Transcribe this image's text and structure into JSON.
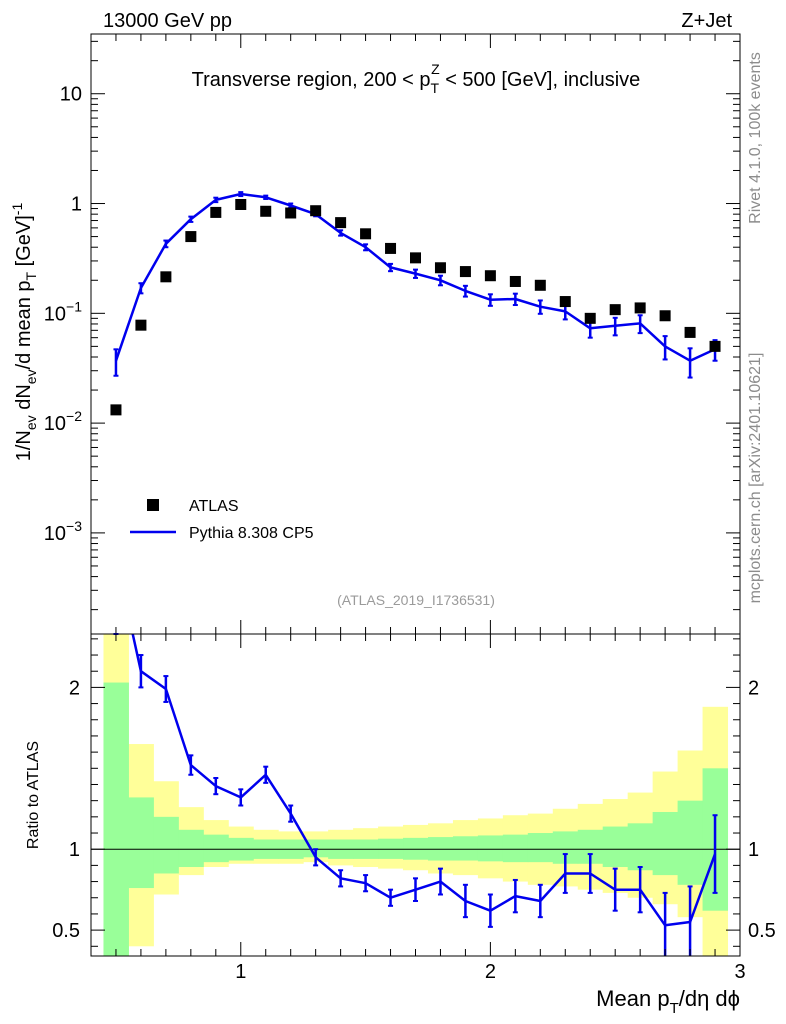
{
  "header": {
    "left": "13000 GeV pp",
    "right": "Z+Jet"
  },
  "side_labels": {
    "rivet": "Rivet 4.1.0,  100k events",
    "mcplots": "mcplots.cern.ch [arXiv:2401.10621]"
  },
  "chart_data": [
    {
      "type": "scatter",
      "panel": "main",
      "title_parts": {
        "pre": "Transverse region, 200 < p",
        "sub": "T",
        "sup": "Z",
        "post": " < 500 [GeV], inclusive"
      },
      "ylabel_parts": [
        "1/N",
        "ev",
        " dN",
        "ev",
        "/d mean p",
        "T",
        " [GeV]",
        "-1"
      ],
      "yscale": "log",
      "ylim": [
        0.00012,
        35
      ],
      "xlim": [
        0.4,
        3.0
      ],
      "y_tick_labels": [
        {
          "value": 10,
          "label": "10"
        },
        {
          "value": 1,
          "label": "1"
        },
        {
          "value": 0.1,
          "base": "10",
          "exp": "−1"
        },
        {
          "value": 0.01,
          "base": "10",
          "exp": "−2"
        },
        {
          "value": 0.001,
          "base": "10",
          "exp": "−3"
        }
      ],
      "legend": [
        "ATLAS",
        "Pythia 8.308 CP5"
      ],
      "legend_position": "bottom-left",
      "watermark": "(ATLAS_2019_I1736531)",
      "x": [
        0.5,
        0.6,
        0.7,
        0.8,
        0.9,
        1.0,
        1.1,
        1.2,
        1.3,
        1.4,
        1.5,
        1.6,
        1.7,
        1.8,
        1.9,
        2.0,
        2.1,
        2.2,
        2.3,
        2.4,
        2.5,
        2.6,
        2.7,
        2.8,
        2.9
      ],
      "series": [
        {
          "name": "ATLAS",
          "style": "square-markers",
          "values": [
            0.0132,
            0.078,
            0.215,
            0.5,
            0.83,
            0.98,
            0.85,
            0.82,
            0.86,
            0.67,
            0.53,
            0.39,
            0.32,
            0.26,
            0.24,
            0.22,
            0.195,
            0.18,
            0.128,
            0.09,
            0.108,
            0.112,
            0.095,
            0.067,
            0.05
          ]
        },
        {
          "name": "Pythia 8.308 CP5",
          "style": "line-with-errorbars",
          "values": [
            0.037,
            0.17,
            0.43,
            0.72,
            1.08,
            1.22,
            1.14,
            0.96,
            0.8,
            0.54,
            0.4,
            0.262,
            0.23,
            0.2,
            0.16,
            0.133,
            0.135,
            0.115,
            0.104,
            0.073,
            0.077,
            0.081,
            0.05,
            0.037,
            0.047
          ],
          "err_lo": [
            0.01,
            0.018,
            0.03,
            0.04,
            0.05,
            0.05,
            0.04,
            0.04,
            0.035,
            0.03,
            0.025,
            0.02,
            0.02,
            0.02,
            0.018,
            0.016,
            0.016,
            0.016,
            0.016,
            0.013,
            0.014,
            0.015,
            0.012,
            0.011,
            0.01
          ],
          "err_hi": [
            0.01,
            0.018,
            0.03,
            0.04,
            0.05,
            0.05,
            0.04,
            0.04,
            0.035,
            0.03,
            0.025,
            0.02,
            0.02,
            0.02,
            0.018,
            0.016,
            0.016,
            0.016,
            0.016,
            0.013,
            0.014,
            0.015,
            0.012,
            0.011,
            0.01
          ]
        }
      ]
    },
    {
      "type": "line",
      "panel": "ratio",
      "ylabel": "Ratio to ATLAS",
      "xlabel_parts": {
        "pre": "Mean p",
        "sub": "T",
        "post": "/dη dϕ"
      },
      "yscale": "linear",
      "ylim": [
        0.34,
        2.33
      ],
      "xlim": [
        0.4,
        3.0
      ],
      "x_tick_labels": [
        {
          "value": 1,
          "label": "1"
        },
        {
          "value": 2,
          "label": "2"
        },
        {
          "value": 3,
          "label": "3"
        }
      ],
      "y_tick_labels": [
        {
          "value": 0.5,
          "label": "0.5"
        },
        {
          "value": 1,
          "label": "1"
        },
        {
          "value": 2,
          "label": "2"
        }
      ],
      "bin_edges": [
        0.45,
        0.55,
        0.65,
        0.75,
        0.85,
        0.95,
        1.05,
        1.15,
        1.25,
        1.35,
        1.45,
        1.55,
        1.65,
        1.75,
        1.85,
        1.95,
        2.05,
        2.15,
        2.25,
        2.35,
        2.45,
        2.55,
        2.65,
        2.75,
        2.85,
        2.95
      ],
      "band_green": {
        "lo": [
          0.34,
          0.76,
          0.85,
          0.89,
          0.92,
          0.93,
          0.94,
          0.94,
          0.95,
          0.94,
          0.94,
          0.94,
          0.935,
          0.93,
          0.93,
          0.925,
          0.92,
          0.92,
          0.91,
          0.91,
          0.89,
          0.87,
          0.84,
          0.78,
          0.62
        ],
        "hi": [
          2.03,
          1.32,
          1.2,
          1.12,
          1.09,
          1.07,
          1.06,
          1.06,
          1.06,
          1.06,
          1.06,
          1.065,
          1.07,
          1.075,
          1.08,
          1.085,
          1.09,
          1.1,
          1.11,
          1.12,
          1.14,
          1.16,
          1.23,
          1.3,
          1.5
        ]
      },
      "band_yellow": {
        "lo": [
          0.34,
          0.4,
          0.72,
          0.84,
          0.89,
          0.91,
          0.91,
          0.91,
          0.92,
          0.9,
          0.89,
          0.88,
          0.87,
          0.85,
          0.84,
          0.82,
          0.8,
          0.78,
          0.77,
          0.75,
          0.73,
          0.7,
          0.66,
          0.58,
          0.34
        ],
        "hi": [
          2.33,
          1.65,
          1.42,
          1.26,
          1.18,
          1.14,
          1.12,
          1.11,
          1.11,
          1.12,
          1.13,
          1.14,
          1.15,
          1.16,
          1.18,
          1.19,
          1.21,
          1.22,
          1.25,
          1.28,
          1.31,
          1.35,
          1.48,
          1.61,
          1.88
        ]
      },
      "reference_line": 1,
      "x": [
        0.5,
        0.6,
        0.7,
        0.8,
        0.9,
        1.0,
        1.1,
        1.2,
        1.3,
        1.4,
        1.5,
        1.6,
        1.7,
        1.8,
        1.9,
        2.0,
        2.1,
        2.2,
        2.3,
        2.4,
        2.5,
        2.6,
        2.7,
        2.8,
        2.9
      ],
      "series": [
        {
          "name": "Pythia 8.308 CP5 / ATLAS",
          "values": [
            2.8,
            2.1,
            1.99,
            1.52,
            1.39,
            1.32,
            1.46,
            1.22,
            0.95,
            0.82,
            0.79,
            0.7,
            0.75,
            0.8,
            0.68,
            0.62,
            0.71,
            0.68,
            0.85,
            0.85,
            0.75,
            0.75,
            0.53,
            0.55,
            0.97
          ],
          "err_lo": [
            0.3,
            0.1,
            0.08,
            0.06,
            0.05,
            0.05,
            0.05,
            0.05,
            0.05,
            0.05,
            0.05,
            0.05,
            0.07,
            0.08,
            0.1,
            0.1,
            0.1,
            0.1,
            0.12,
            0.12,
            0.13,
            0.14,
            0.2,
            0.22,
            0.24
          ],
          "err_hi": [
            0.3,
            0.1,
            0.08,
            0.06,
            0.05,
            0.05,
            0.05,
            0.05,
            0.05,
            0.05,
            0.05,
            0.05,
            0.07,
            0.08,
            0.1,
            0.1,
            0.1,
            0.1,
            0.12,
            0.12,
            0.13,
            0.14,
            0.2,
            0.22,
            0.24
          ]
        }
      ]
    }
  ]
}
